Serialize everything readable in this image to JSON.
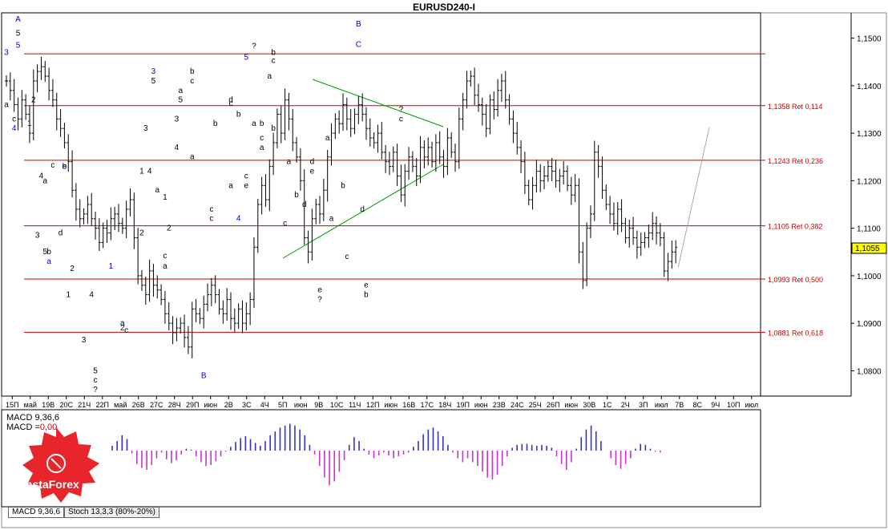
{
  "title": "EURUSD240-I",
  "price_now": "1,1055",
  "macd_label": "MACD 9,36,6",
  "macd_value_label": "MACD =",
  "macd_value": "0,00",
  "tabs": [
    "MACD 9,36,6",
    "Stoch 13,3,3 (80%-20%)"
  ],
  "logo_text": "InstaForex",
  "colors": {
    "grid_red": "#cc0000",
    "wave_blue": "#0000cc",
    "trend_green": "#009900",
    "macd_pos": "#3333cc",
    "macd_neg": "#cc33cc",
    "logo": "#e02020"
  },
  "chart_data": {
    "type": "candlestick",
    "title": "EURUSD240-I",
    "ylim": [
      1.075,
      1.155
    ],
    "y_ticks": [
      "1,1500",
      "1,1400",
      "1,1300",
      "1,1200",
      "1,1100",
      "1,1000",
      "1,0900",
      "1,0800"
    ],
    "y_tick_values": [
      1.15,
      1.14,
      1.13,
      1.12,
      1.11,
      1.1,
      1.09,
      1.08
    ],
    "x_ticks": [
      "15П",
      "май",
      "19В",
      "20С",
      "21Ч",
      "22П",
      "май",
      "26В",
      "27С",
      "28Ч",
      "29П",
      "июн",
      "2В",
      "3С",
      "4Ч",
      "5П",
      "июн",
      "9В",
      "10С",
      "11Ч",
      "12П",
      "июн",
      "16В",
      "17С",
      "18Ч",
      "19П",
      "июн",
      "23В",
      "24С",
      "25Ч",
      "26П",
      "июн",
      "30В",
      "1С",
      "2Ч",
      "3П",
      "июл",
      "7В",
      "8С",
      "9Ч",
      "10П",
      "июл"
    ],
    "levels": [
      {
        "price": 1.1467,
        "label": ""
      },
      {
        "price": 1.1358,
        "label": "1,1358 Ret 0,114"
      },
      {
        "price": 1.1243,
        "label": "1,1243 Ret 0,236"
      },
      {
        "price": 1.1105,
        "label": "1,1105 Ret 0,382"
      },
      {
        "price": 1.0993,
        "label": "1,0993 Ret 0,500"
      },
      {
        "price": 1.0881,
        "label": "1,0881 Ret 0,618"
      }
    ],
    "close_path": [
      1.141,
      1.139,
      1.136,
      1.133,
      1.137,
      1.134,
      1.13,
      1.141,
      1.143,
      1.144,
      1.142,
      1.139,
      1.137,
      1.133,
      1.131,
      1.128,
      1.124,
      1.118,
      1.114,
      1.112,
      1.113,
      1.115,
      1.112,
      1.11,
      1.107,
      1.11,
      1.109,
      1.112,
      1.113,
      1.111,
      1.11,
      1.114,
      1.116,
      1.108,
      1.1,
      1.098,
      1.096,
      1.101,
      1.098,
      1.097,
      1.095,
      1.092,
      1.09,
      1.088,
      1.089,
      1.09,
      1.087,
      1.085,
      1.093,
      1.092,
      1.091,
      1.094,
      1.096,
      1.098,
      1.096,
      1.093,
      1.092,
      1.095,
      1.091,
      1.09,
      1.093,
      1.09,
      1.092,
      1.095,
      1.106,
      1.115,
      1.119,
      1.116,
      1.123,
      1.128,
      1.134,
      1.13,
      1.137,
      1.133,
      1.128,
      1.125,
      1.12,
      1.108,
      1.105,
      1.112,
      1.115,
      1.113,
      1.118,
      1.125,
      1.13,
      1.133,
      1.132,
      1.136,
      1.133,
      1.131,
      1.134,
      1.136,
      1.134,
      1.131,
      1.129,
      1.128,
      1.13,
      1.126,
      1.124,
      1.123,
      1.126,
      1.121,
      1.117,
      1.122,
      1.125,
      1.123,
      1.121,
      1.127,
      1.125,
      1.127,
      1.124,
      1.128,
      1.125,
      1.123,
      1.129,
      1.126,
      1.124,
      1.133,
      1.137,
      1.141,
      1.142,
      1.138,
      1.136,
      1.134,
      1.131,
      1.137,
      1.135,
      1.139,
      1.141,
      1.137,
      1.133,
      1.13,
      1.127,
      1.124,
      1.119,
      1.116,
      1.119,
      1.122,
      1.12,
      1.121,
      1.123,
      1.122,
      1.12,
      1.121,
      1.122,
      1.119,
      1.117,
      1.119,
      1.105,
      1.099,
      1.11,
      1.113,
      1.126,
      1.123,
      1.118,
      1.115,
      1.113,
      1.111,
      1.114,
      1.111,
      1.108,
      1.11,
      1.108,
      1.106,
      1.107,
      1.108,
      1.109,
      1.111,
      1.109,
      1.108,
      1.101,
      1.103,
      1.105,
      1.106
    ],
    "forecast": [
      {
        "from": 1.1018,
        "to": 1.1312
      }
    ],
    "annotations_blue": [
      {
        "text": "A",
        "i": 3,
        "y": 1.1535
      },
      {
        "text": "3",
        "i": 0,
        "y": 1.1465
      },
      {
        "text": "5",
        "i": 3,
        "y": 1.148
      },
      {
        "text": "4",
        "i": 2,
        "y": 1.1305
      },
      {
        "text": "b",
        "i": 15,
        "y": 1.1225
      },
      {
        "text": "a",
        "i": 11,
        "y": 1.1025
      },
      {
        "text": "1",
        "i": 27,
        "y": 1.1015
      },
      {
        "text": "2",
        "i": 30,
        "y": 1.0885
      },
      {
        "text": "3",
        "i": 38,
        "y": 1.1425
      },
      {
        "text": "5",
        "i": 62,
        "y": 1.1455
      },
      {
        "text": "4",
        "i": 60,
        "y": 1.1115
      },
      {
        "text": "B",
        "i": 51,
        "y": 1.0785
      },
      {
        "text": "B",
        "i": 91,
        "y": 1.1525
      },
      {
        "text": "C",
        "i": 91,
        "y": 1.1482
      }
    ],
    "annotations_black": [
      {
        "text": "5",
        "i": 3,
        "y": 1.1505
      },
      {
        "text": "a",
        "i": 0,
        "y": 1.1355
      },
      {
        "text": "c",
        "i": 2,
        "y": 1.1325
      },
      {
        "text": "2",
        "i": 7,
        "y": 1.1365
      },
      {
        "text": "1",
        "i": 6,
        "y": 1.1315
      },
      {
        "text": "e",
        "i": 15,
        "y": 1.1225
      },
      {
        "text": "c",
        "i": 12,
        "y": 1.1228
      },
      {
        "text": "4",
        "i": 9,
        "y": 1.1205
      },
      {
        "text": "a",
        "i": 10,
        "y": 1.1195
      },
      {
        "text": "3",
        "i": 8,
        "y": 1.108
      },
      {
        "text": "5",
        "i": 10,
        "y": 1.1045
      },
      {
        "text": "b",
        "i": 11,
        "y": 1.1045
      },
      {
        "text": "d",
        "i": 14,
        "y": 1.1085
      },
      {
        "text": "2",
        "i": 17,
        "y": 1.101
      },
      {
        "text": "1",
        "i": 16,
        "y": 1.0955
      },
      {
        "text": "4",
        "i": 22,
        "y": 1.0955
      },
      {
        "text": "3",
        "i": 20,
        "y": 1.086
      },
      {
        "text": "5",
        "i": 23,
        "y": 1.0795
      },
      {
        "text": "c",
        "i": 23,
        "y": 1.0775
      },
      {
        "text": "?",
        "i": 23,
        "y": 1.0755
      },
      {
        "text": "a",
        "i": 30,
        "y": 1.0895
      },
      {
        "text": "c",
        "i": 31,
        "y": 1.088
      },
      {
        "text": "1",
        "i": 35,
        "y": 1.1215
      },
      {
        "text": "2",
        "i": 35,
        "y": 1.1085
      },
      {
        "text": "3",
        "i": 36,
        "y": 1.1305
      },
      {
        "text": "4",
        "i": 37,
        "y": 1.1215
      },
      {
        "text": "5",
        "i": 38,
        "y": 1.1405
      },
      {
        "text": "a",
        "i": 39,
        "y": 1.1175
      },
      {
        "text": "1",
        "i": 41,
        "y": 1.116
      },
      {
        "text": "2",
        "i": 42,
        "y": 1.1095
      },
      {
        "text": "c",
        "i": 41,
        "y": 1.1037
      },
      {
        "text": "a",
        "i": 41,
        "y": 1.1015
      },
      {
        "text": "3",
        "i": 44,
        "y": 1.1325
      },
      {
        "text": "4",
        "i": 44,
        "y": 1.1265
      },
      {
        "text": "5",
        "i": 45,
        "y": 1.1365
      },
      {
        "text": "a",
        "i": 45,
        "y": 1.1385
      },
      {
        "text": "b",
        "i": 48,
        "y": 1.1425
      },
      {
        "text": "c",
        "i": 48,
        "y": 1.1405
      },
      {
        "text": "a",
        "i": 48,
        "y": 1.1245
      },
      {
        "text": "b",
        "i": 54,
        "y": 1.1315
      },
      {
        "text": "c",
        "i": 53,
        "y": 1.1135
      },
      {
        "text": "c",
        "i": 53,
        "y": 1.1115
      },
      {
        "text": "a",
        "i": 58,
        "y": 1.1185
      },
      {
        "text": "c",
        "i": 58,
        "y": 1.1358
      },
      {
        "text": "b",
        "i": 60,
        "y": 1.1335
      },
      {
        "text": "d",
        "i": 58,
        "y": 1.1365
      },
      {
        "text": "e",
        "i": 62,
        "y": 1.1185
      },
      {
        "text": "c",
        "i": 62,
        "y": 1.1205
      },
      {
        "text": "?",
        "i": 64,
        "y": 1.1478
      },
      {
        "text": "a",
        "i": 64,
        "y": 1.1315
      },
      {
        "text": "b",
        "i": 66,
        "y": 1.1315
      },
      {
        "text": "c",
        "i": 66,
        "y": 1.1285
      },
      {
        "text": "a",
        "i": 66,
        "y": 1.1265
      },
      {
        "text": "b",
        "i": 69,
        "y": 1.1465
      },
      {
        "text": "c",
        "i": 69,
        "y": 1.1448
      },
      {
        "text": "a",
        "i": 68,
        "y": 1.1415
      },
      {
        "text": "b",
        "i": 69,
        "y": 1.1305
      },
      {
        "text": "c",
        "i": 72,
        "y": 1.1105
      },
      {
        "text": "a",
        "i": 73,
        "y": 1.1235
      },
      {
        "text": "b",
        "i": 75,
        "y": 1.1165
      },
      {
        "text": "d",
        "i": 77,
        "y": 1.1145
      },
      {
        "text": "e",
        "i": 79,
        "y": 1.1215
      },
      {
        "text": "d",
        "i": 79,
        "y": 1.1235
      },
      {
        "text": "a",
        "i": 83,
        "y": 1.1285
      },
      {
        "text": "e",
        "i": 81,
        "y": 1.0965
      },
      {
        "text": "?",
        "i": 81,
        "y": 1.0945
      },
      {
        "text": "b",
        "i": 87,
        "y": 1.1185
      },
      {
        "text": "a",
        "i": 84,
        "y": 1.1115
      },
      {
        "text": "c",
        "i": 88,
        "y": 1.1035
      },
      {
        "text": "d",
        "i": 92,
        "y": 1.1135
      },
      {
        "text": "e",
        "i": 93,
        "y": 1.0975
      },
      {
        "text": "b",
        "i": 93,
        "y": 1.0955
      },
      {
        "text": "?",
        "i": 102,
        "y": 1.1345
      },
      {
        "text": "c",
        "i": 102,
        "y": 1.1325
      }
    ],
    "macd": [
      0.5,
      1,
      1.6,
      1.2,
      -0.3,
      -1.4,
      -1.8,
      -2.0,
      -1.5,
      -0.8,
      -0.2,
      -0.9,
      -1.3,
      -1.0,
      -0.4,
      0.2,
      0.1,
      -0.6,
      -1.2,
      -1.6,
      -1.5,
      -1.1,
      -0.6,
      -0.1,
      0.4,
      0.9,
      1.3,
      1.5,
      1.2,
      0.8,
      0.5,
      1.0,
      1.6,
      2.0,
      2.4,
      2.6,
      2.8,
      2.6,
      2.2,
      1.6,
      0.6,
      -0.4,
      -1.6,
      -2.8,
      -3.6,
      -3.2,
      -2.2,
      -1.0,
      0.6,
      1.4,
      1.0,
      0.2,
      -0.4,
      -0.8,
      -0.5,
      -0.2,
      -0.5,
      -0.8,
      -0.6,
      -0.4,
      -0.2,
      0.4,
      1.0,
      1.7,
      2.2,
      2.4,
      2.0,
      1.5,
      0.6,
      -0.2,
      -0.8,
      -1.2,
      -0.8,
      -1.2,
      -1.6,
      -2.2,
      -2.8,
      -3.0,
      -2.5,
      -1.6,
      -0.6,
      0.3,
      0.6,
      0.7,
      0.7,
      0.6,
      0.5,
      0.6,
      0.5,
      0.3,
      -0.6,
      -1.4,
      -2.0,
      -1.2,
      0.2,
      1.4,
      2.2,
      2.6,
      2.0,
      1.0,
      0.0,
      -0.8,
      -1.5,
      -1.9,
      -1.4,
      -0.8,
      0.2,
      0.7,
      0.6,
      0.2,
      -0.1,
      -0.2
    ]
  }
}
